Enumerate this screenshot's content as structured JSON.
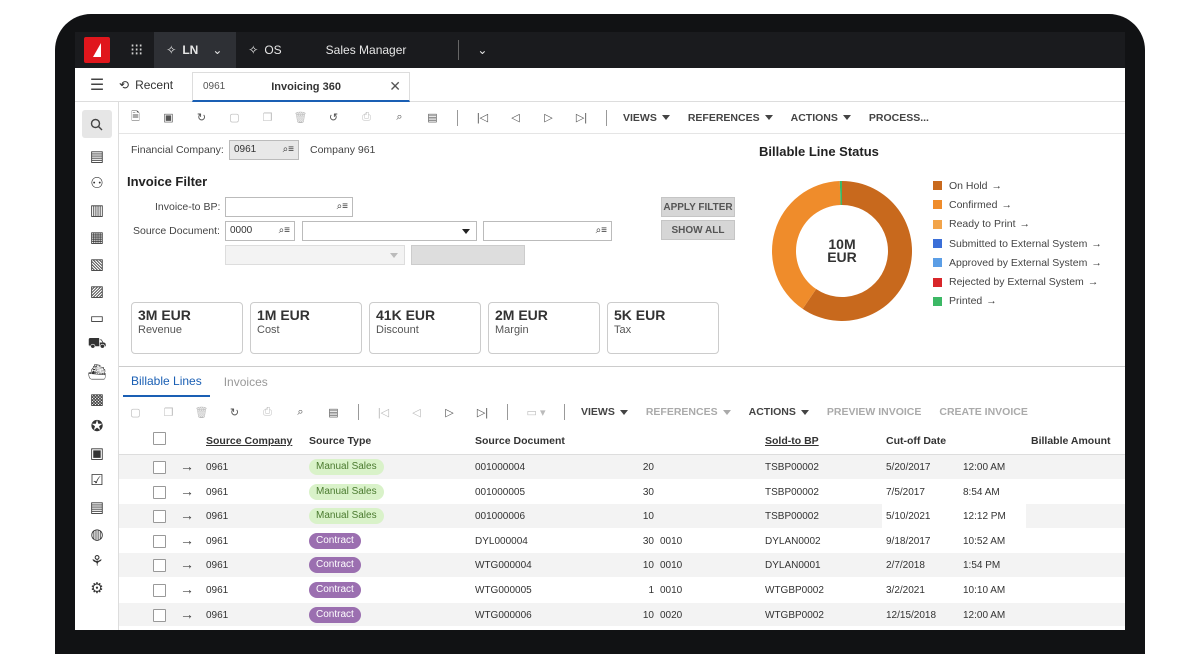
{
  "topbar": {
    "env": "LN",
    "os": "OS",
    "role": "Sales Manager"
  },
  "tabs": {
    "recent": "Recent",
    "tab_num": "0961",
    "tab_title": "Invoicing 360"
  },
  "toolbar1": {
    "views": "VIEWS",
    "references": "REFERENCES",
    "actions": "ACTIONS",
    "process": "PROCESS..."
  },
  "filter": {
    "fin_company_label": "Financial Company:",
    "fin_company_value": "0961",
    "fin_company_name": "Company 961",
    "title": "Invoice Filter",
    "invoice_bp_label": "Invoice-to BP:",
    "invoice_bp_value": "",
    "source_doc_label": "Source Document:",
    "source_doc_value": "0000",
    "apply_label": "APPLY FILTER",
    "show_all_label": "SHOW ALL"
  },
  "kpis": [
    {
      "value": "3M EUR",
      "caption": "Revenue"
    },
    {
      "value": "1M EUR",
      "caption": "Cost"
    },
    {
      "value": "41K EUR",
      "caption": "Discount"
    },
    {
      "value": "2M EUR",
      "caption": "Margin"
    },
    {
      "value": "5K EUR",
      "caption": "Tax"
    }
  ],
  "chart_data": {
    "type": "pie",
    "title": "Billable Line Status",
    "center_value": "10M",
    "center_unit": "EUR",
    "series": [
      {
        "name": "On Hold",
        "value": 59.5,
        "color": "#c8691d"
      },
      {
        "name": "Confirmed",
        "value": 40.0,
        "color": "#ef8c2b"
      },
      {
        "name": "Ready to Print",
        "value": 0.0,
        "color": "#f2a44a"
      },
      {
        "name": "Submitted to External System",
        "value": 0.0,
        "color": "#3b6fd8"
      },
      {
        "name": "Approved by External System",
        "value": 0.0,
        "color": "#5b9ee6"
      },
      {
        "name": "Rejected by External System",
        "value": 0.0,
        "color": "#d8262a"
      },
      {
        "name": "Printed",
        "value": 0.5,
        "color": "#3cb865"
      }
    ],
    "legend_position": "right"
  },
  "grid": {
    "tab_active": "Billable Lines",
    "tab_other": "Invoices",
    "toolbar": {
      "views": "VIEWS",
      "references": "REFERENCES",
      "actions": "ACTIONS",
      "preview": "PREVIEW INVOICE",
      "create": "CREATE INVOICE"
    },
    "headers": {
      "source_company": "Source Company",
      "source_type": "Source Type",
      "source_document": "Source Document",
      "sold_to_bp": "Sold-to BP",
      "cutoff_date": "Cut-off Date",
      "billable_amount": "Billable Amount"
    },
    "rows": [
      {
        "company": "0961",
        "type": "Manual Sales",
        "kind": "ms",
        "doc": "001000004",
        "line": "20",
        "pos": "",
        "bp": "TSBP00002",
        "date": "5/20/2017",
        "time": "12:00 AM"
      },
      {
        "company": "0961",
        "type": "Manual Sales",
        "kind": "ms",
        "doc": "001000005",
        "line": "30",
        "pos": "",
        "bp": "TSBP00002",
        "date": "7/5/2017",
        "time": "8:54 AM"
      },
      {
        "company": "0961",
        "type": "Manual Sales",
        "kind": "ms",
        "doc": "001000006",
        "line": "10",
        "pos": "",
        "bp": "TSBP00002",
        "date": "5/10/2021",
        "time": "12:12 PM"
      },
      {
        "company": "0961",
        "type": "Contract",
        "kind": "ct",
        "doc": "DYL000004",
        "line": "30",
        "pos": "0010",
        "bp": "DYLAN0002",
        "date": "9/18/2017",
        "time": "10:52 AM"
      },
      {
        "company": "0961",
        "type": "Contract",
        "kind": "ct",
        "doc": "WTG000004",
        "line": "10",
        "pos": "0010",
        "bp": "DYLAN0001",
        "date": "2/7/2018",
        "time": "1:54 PM"
      },
      {
        "company": "0961",
        "type": "Contract",
        "kind": "ct",
        "doc": "WTG000005",
        "line": "1",
        "pos": "0010",
        "bp": "WTGBP0002",
        "date": "3/2/2021",
        "time": "10:10 AM"
      },
      {
        "company": "0961",
        "type": "Contract",
        "kind": "ct",
        "doc": "WTG000006",
        "line": "10",
        "pos": "0020",
        "bp": "WTGBP0002",
        "date": "12/15/2018",
        "time": "12:00 AM"
      }
    ]
  }
}
